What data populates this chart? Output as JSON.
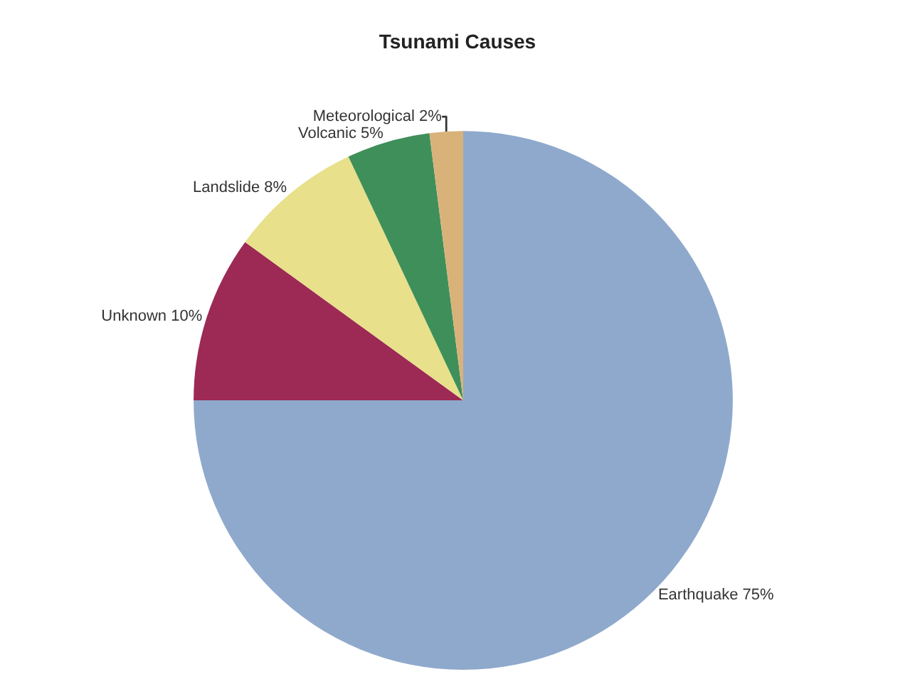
{
  "chart_data": {
    "type": "pie",
    "title": "Tsunami Causes",
    "categories": [
      "Earthquake",
      "Unknown",
      "Landslide",
      "Volcanic",
      "Meteorological"
    ],
    "values": [
      75,
      10,
      8,
      5,
      2
    ],
    "value_labels": [
      "75%",
      "10%",
      "8%",
      "5%",
      "2%"
    ],
    "colors": [
      "#8fa9cc",
      "#9c2a55",
      "#e8e08a",
      "#3f8f5a",
      "#d9b27a"
    ],
    "legend": false
  }
}
